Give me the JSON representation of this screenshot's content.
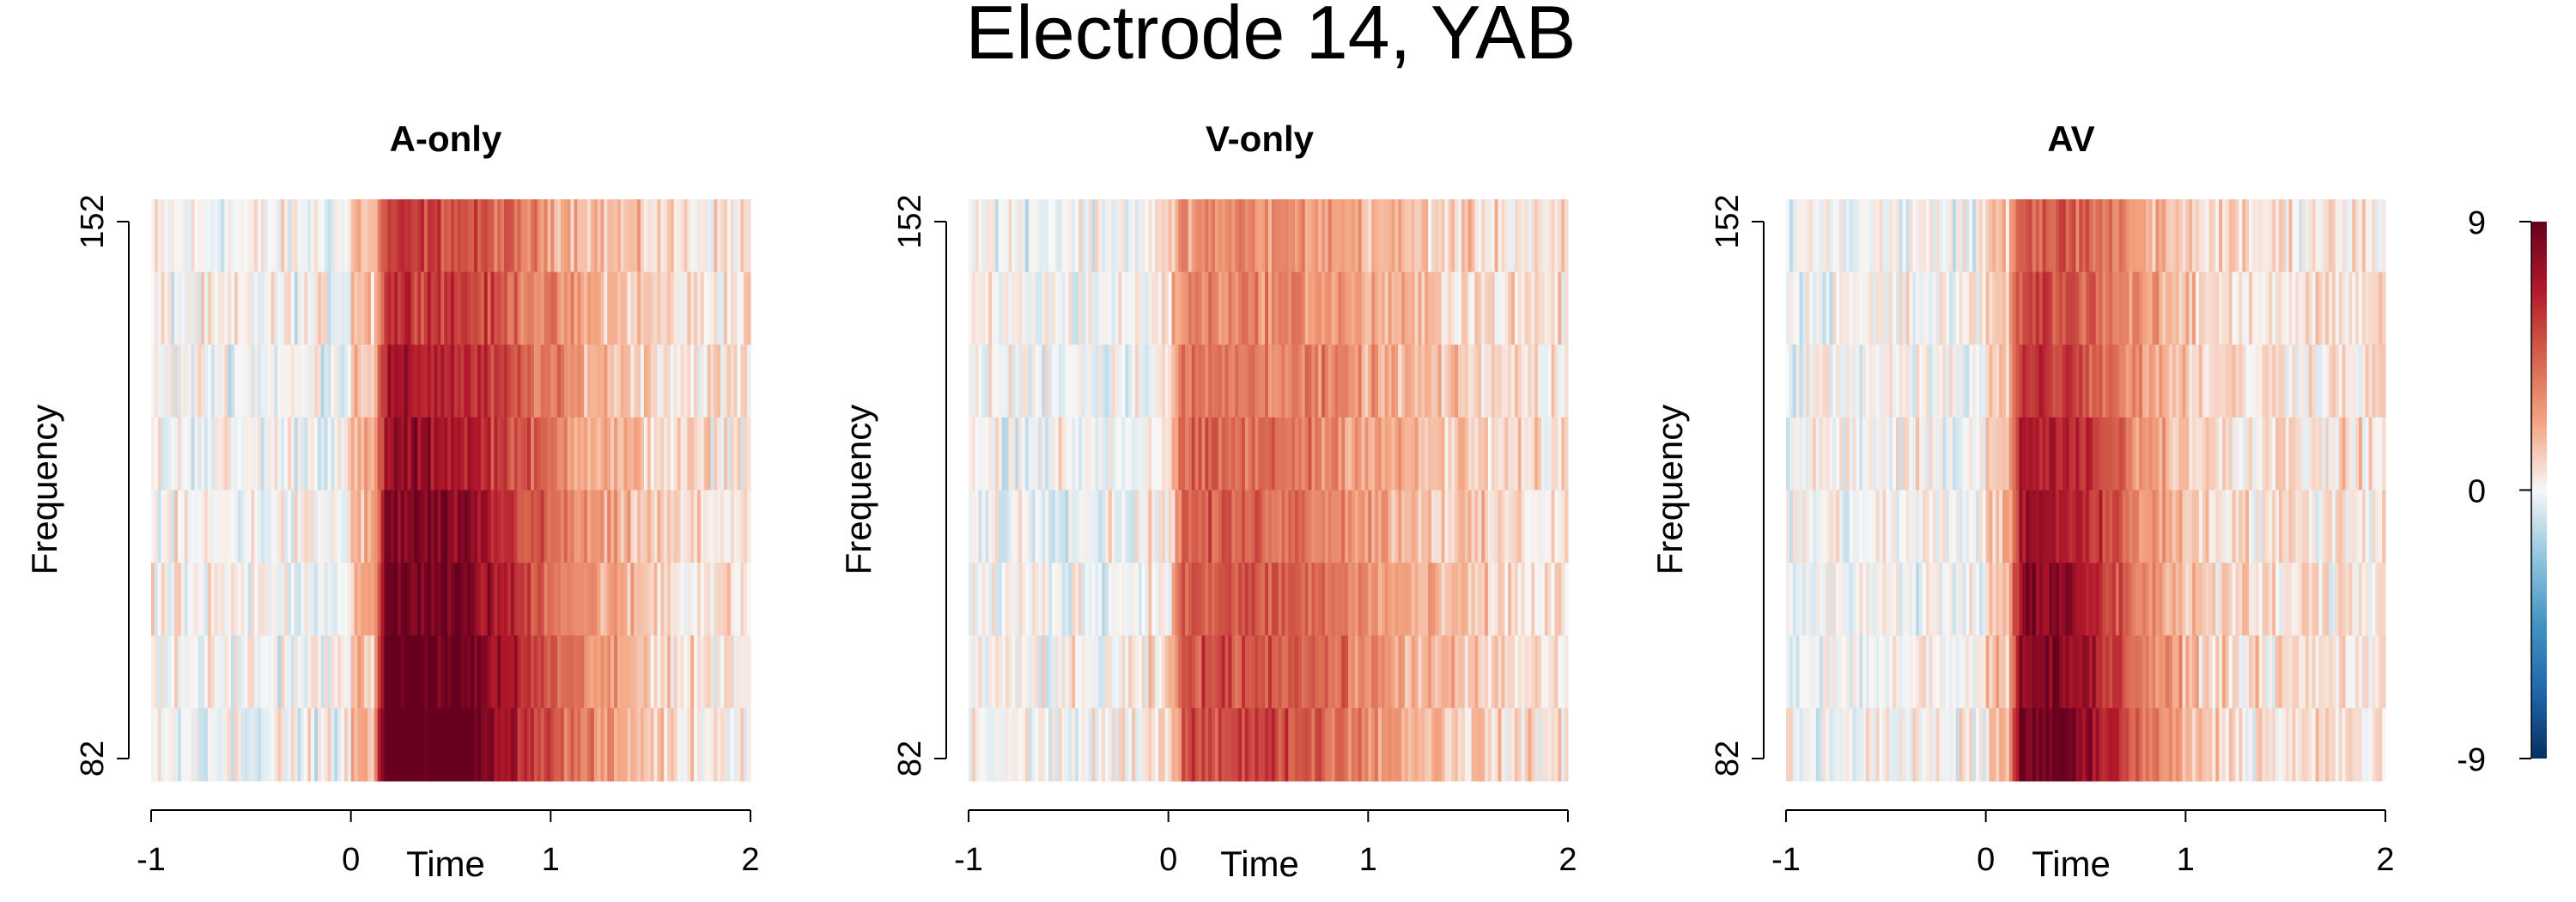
{
  "title": "Electrode 14, YAB",
  "colors": {
    "negative_extreme": "#053061",
    "neutral": "#f7f7f7",
    "positive_extreme": "#67001f",
    "axis": "#000000"
  },
  "chart_data": [
    {
      "type": "heatmap",
      "title": "A-only",
      "xlabel": "Time",
      "ylabel": "Frequency",
      "xlim": [
        -1,
        2
      ],
      "xticks": [
        "-1",
        "0",
        "1",
        "2"
      ],
      "yticks": [
        "82",
        "152"
      ],
      "ylim": [
        82,
        152
      ],
      "n_frequency_bands": 8,
      "onset_time": 0.1,
      "peak_time": 0.35,
      "peak_value": 8,
      "response_end_time": 1.0
    },
    {
      "type": "heatmap",
      "title": "V-only",
      "xlabel": "Time",
      "ylabel": "Frequency",
      "xlim": [
        -1,
        2
      ],
      "xticks": [
        "-1",
        "0",
        "1",
        "2"
      ],
      "yticks": [
        "82",
        "152"
      ],
      "ylim": [
        82,
        152
      ],
      "n_frequency_bands": 8,
      "onset_time": 0.0,
      "peak_time": 0.45,
      "peak_value": 4,
      "response_end_time": 1.1
    },
    {
      "type": "heatmap",
      "title": "AV",
      "xlabel": "Time",
      "ylabel": "Frequency",
      "xlim": [
        -1,
        2
      ],
      "xticks": [
        "-1",
        "0",
        "1",
        "2"
      ],
      "yticks": [
        "82",
        "152"
      ],
      "ylim": [
        82,
        152
      ],
      "n_frequency_bands": 8,
      "onset_time": 0.1,
      "peak_time": 0.3,
      "peak_value": 7,
      "response_end_time": 0.7
    }
  ],
  "colorbar": {
    "ticks": [
      "9",
      "0",
      "-9"
    ],
    "range": [
      -9,
      9
    ]
  }
}
